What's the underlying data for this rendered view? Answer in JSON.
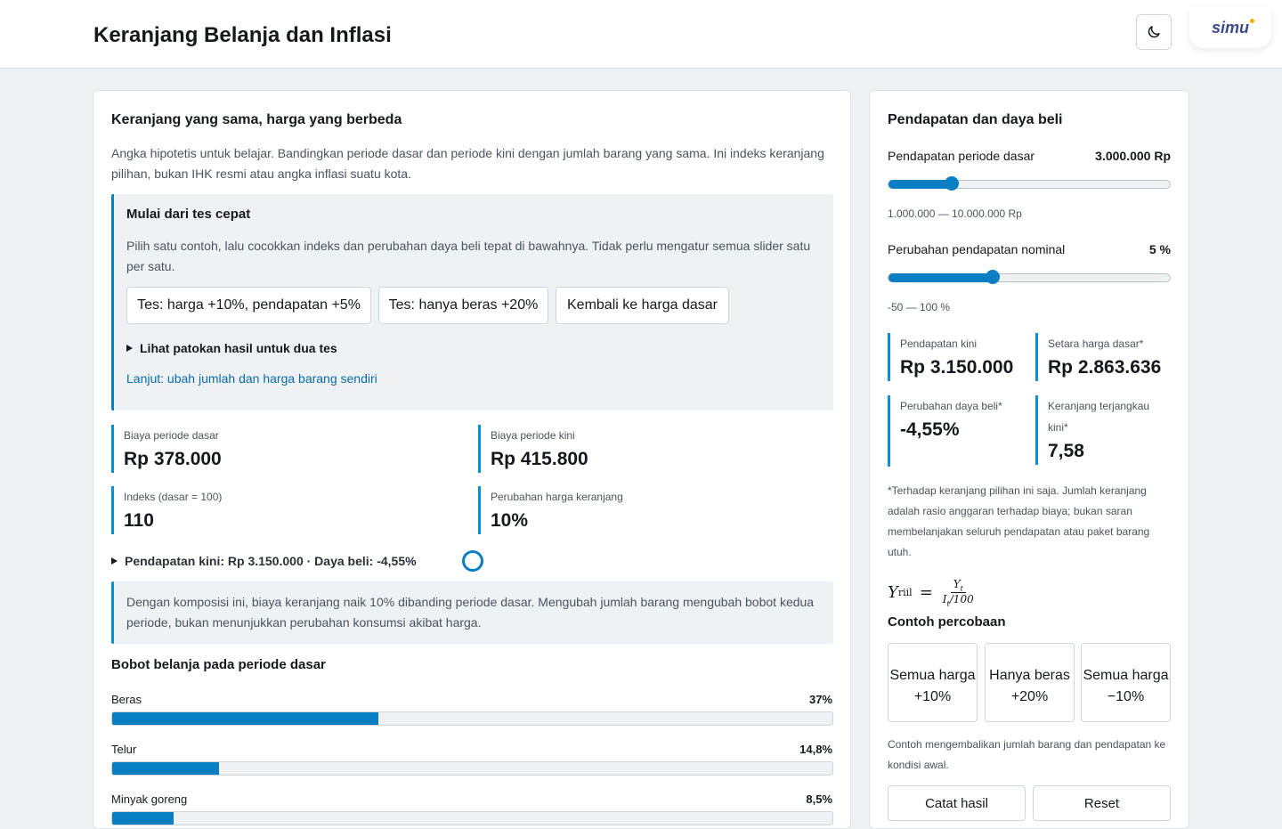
{
  "header": {
    "title": "Keranjang Belanja dan Inflasi",
    "logo_text": "simu"
  },
  "left": {
    "title": "Keranjang yang sama, harga yang berbeda",
    "intro": "Angka hipotetis untuk belajar. Bandingkan periode dasar dan periode kini dengan jumlah barang yang sama. Ini indeks keranjang pilihan, bukan IHK resmi atau angka inflasi suatu kota.",
    "quick": {
      "title": "Mulai dari tes cepat",
      "desc": "Pilih satu contoh, lalu cocokkan indeks dan perubahan daya beli tepat di bawahnya. Tidak perlu mengatur semua slider satu per satu.",
      "buttons": [
        "Tes: harga +10%, pendapatan +5%",
        "Tes: hanya beras +20%",
        "Kembali ke harga dasar"
      ],
      "details_label": "Lihat patokan hasil untuk dua tes",
      "next_link": "Lanjut: ubah jumlah dan harga barang sendiri"
    },
    "stats": [
      {
        "label": "Biaya periode dasar",
        "value": "Rp 378.000"
      },
      {
        "label": "Biaya periode kini",
        "value": "Rp 415.800"
      },
      {
        "label": "Indeks (dasar = 100)",
        "value": "110"
      },
      {
        "label": "Perubahan harga keranjang",
        "value": "10%"
      }
    ],
    "summary_line": "Pendapatan kini: Rp 3.150.000 · Daya beli: -4,55%",
    "note": "Dengan komposisi ini, biaya keranjang naik 10% dibanding periode dasar. Mengubah jumlah barang mengubah bobot kedua periode, bukan menunjukkan perubahan konsumsi akibat harga.",
    "weights_title": "Bobot belanja pada periode dasar",
    "weights": [
      {
        "label": "Beras",
        "pct_text": "37%",
        "value": 37
      },
      {
        "label": "Telur",
        "pct_text": "14,8%",
        "value": 14.8
      },
      {
        "label": "Minyak goreng",
        "pct_text": "8,5%",
        "value": 8.5
      }
    ]
  },
  "right": {
    "title": "Pendapatan dan daya beli",
    "income": {
      "label": "Pendapatan periode dasar",
      "value_text": "3.000.000 Rp",
      "range": "1.000.000 — 10.000.000 Rp",
      "min": 1000000,
      "max": 10000000,
      "value": 3000000
    },
    "change": {
      "label": "Perubahan pendapatan nominal",
      "value_text": "5 %",
      "range": "-50 — 100 %",
      "min": -50,
      "max": 100,
      "value": 5
    },
    "stats": [
      {
        "label": "Pendapatan kini",
        "value": "Rp 3.150.000"
      },
      {
        "label": "Setara harga dasar*",
        "value": "Rp 2.863.636"
      },
      {
        "label": "Perubahan daya beli*",
        "value": "-4,55%"
      },
      {
        "label": "Keranjang terjangkau kini*",
        "value": "7,58"
      }
    ],
    "footnote": "*Terhadap keranjang pilihan ini saja. Jumlah keranjang adalah rasio anggaran terhadap biaya; bukan saran membelanjakan seluruh pendapatan atau paket barang utuh.",
    "formula": {
      "lhs": "Y",
      "lhs_sub": "riil",
      "num": "Y",
      "num_sub": "t",
      "den": "I",
      "den_sub": "t",
      "den_tail": "/100"
    },
    "examples_title": "Contoh percobaan",
    "examples": [
      "Semua harga +10%",
      "Hanya beras +20%",
      "Semua harga −10%"
    ],
    "examples_note": "Contoh mengembalikan jumlah barang dan pendapatan ke kondisi awal.",
    "bottom_buttons": [
      "Catat hasil",
      "Reset"
    ]
  }
}
